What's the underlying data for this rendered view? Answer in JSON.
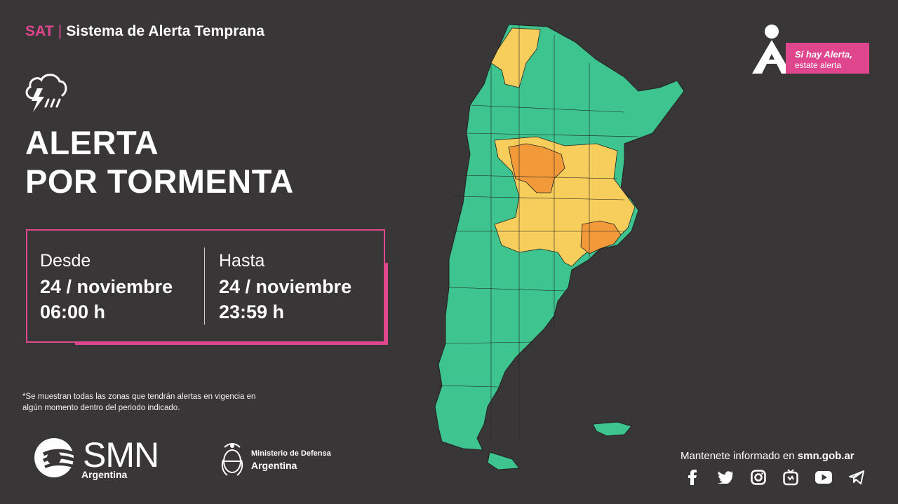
{
  "header": {
    "sat": "SAT",
    "separator": "|",
    "title": "Sistema de Alerta Temprana"
  },
  "icon": "storm-cloud-icon",
  "alert_title": {
    "line1": "ALERTA",
    "line2": "POR TORMENTA"
  },
  "period": {
    "desde_label": "Desde",
    "desde_date": "24 / noviembre",
    "desde_time": "06:00 h",
    "hasta_label": "Hasta",
    "hasta_date": "24 / noviembre",
    "hasta_time": "23:59 h"
  },
  "footnote": "*Se muestran todas las zonas que tendrán alertas en vigencia en algún momento dentro del periodo indicado.",
  "smn": {
    "name": "SMN",
    "country": "Argentina"
  },
  "ministerio": {
    "line1": "Ministerio de Defensa",
    "line2": "Argentina"
  },
  "alert_badge": {
    "line1": "Si hay Alerta,",
    "line2": "estate alerta"
  },
  "social": {
    "text_prefix": "Mantenete informado en ",
    "url": "smn.gob.ar",
    "icons": [
      "facebook-icon",
      "twitter-icon",
      "instagram-icon",
      "igtv-icon",
      "youtube-icon",
      "telegram-icon"
    ]
  },
  "colors": {
    "background": "#393638",
    "accent": "#e0468e",
    "no_alert": "#3ec58f",
    "yellow": "#f7cd5c",
    "orange": "#f29a3a"
  }
}
